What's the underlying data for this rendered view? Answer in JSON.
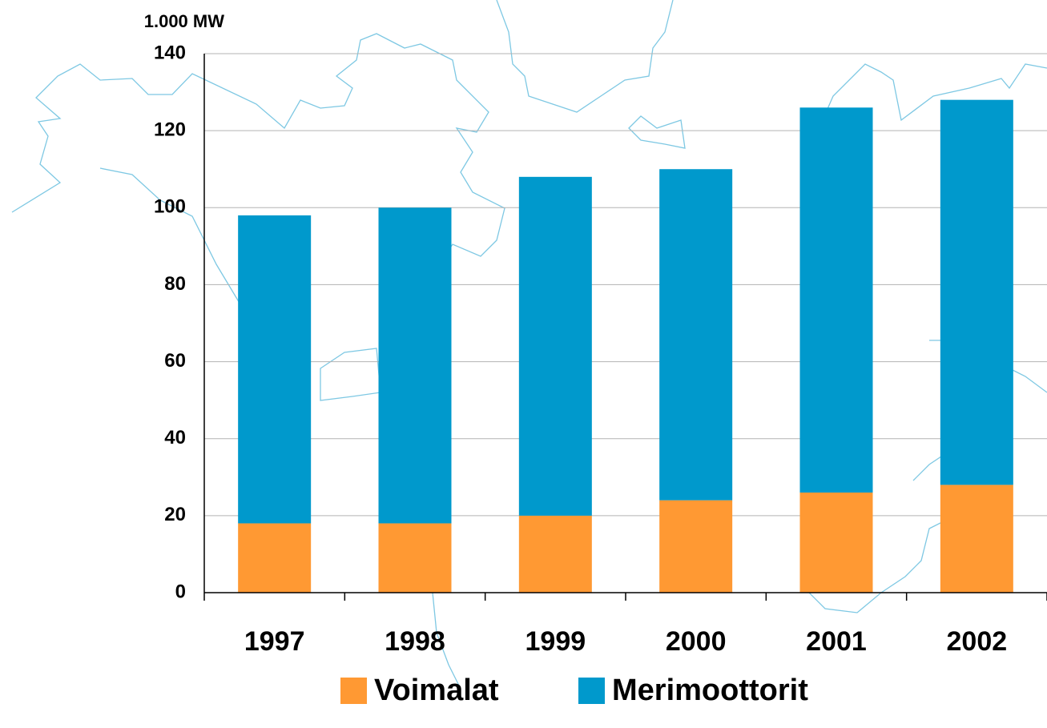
{
  "chart_data": {
    "type": "stacked_bar",
    "ylabel": "1.000 MW",
    "categories": [
      "1997",
      "1998",
      "1999",
      "2000",
      "2001",
      "2002"
    ],
    "series": [
      {
        "name": "Voimalat",
        "color": "#ff9933",
        "values": [
          18,
          18,
          20,
          24,
          26,
          28
        ]
      },
      {
        "name": "Merimoottorit",
        "color": "#0099cc",
        "values": [
          80,
          82,
          88,
          86,
          100,
          100
        ]
      }
    ],
    "ylim": [
      0,
      140
    ],
    "yticks": [
      0,
      20,
      40,
      60,
      80,
      100,
      120,
      140
    ],
    "grid": true,
    "legend": "bottom"
  }
}
